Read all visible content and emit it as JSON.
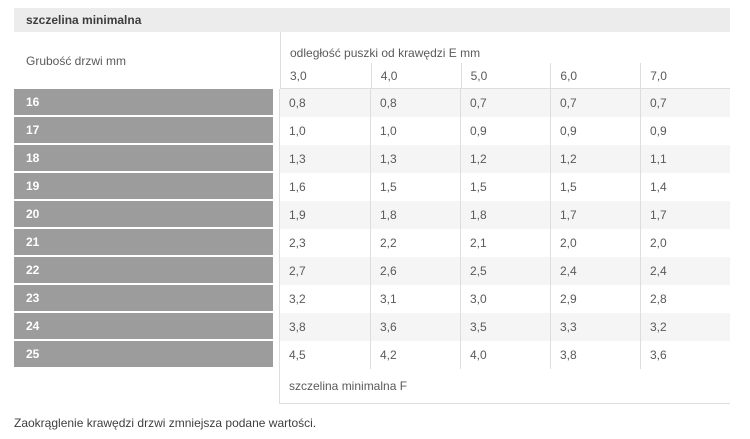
{
  "title_bar": {
    "label": "szczelina minimalna"
  },
  "table": {
    "row_axis_label": "Grubość drzwi mm",
    "col_group_label": "odległość puszki od krawędzi E mm",
    "col_headers": [
      "3,0",
      "4,0",
      "5,0",
      "6,0",
      "7,0"
    ],
    "rows": [
      {
        "label": "16",
        "values": [
          "0,8",
          "0,8",
          "0,7",
          "0,7",
          "0,7"
        ]
      },
      {
        "label": "17",
        "values": [
          "1,0",
          "1,0",
          "0,9",
          "0,9",
          "0,9"
        ]
      },
      {
        "label": "18",
        "values": [
          "1,3",
          "1,3",
          "1,2",
          "1,2",
          "1,1"
        ]
      },
      {
        "label": "19",
        "values": [
          "1,6",
          "1,5",
          "1,5",
          "1,5",
          "1,4"
        ]
      },
      {
        "label": "20",
        "values": [
          "1,9",
          "1,8",
          "1,8",
          "1,7",
          "1,7"
        ]
      },
      {
        "label": "21",
        "values": [
          "2,3",
          "2,2",
          "2,1",
          "2,0",
          "2,0"
        ]
      },
      {
        "label": "22",
        "values": [
          "2,7",
          "2,6",
          "2,5",
          "2,4",
          "2,4"
        ]
      },
      {
        "label": "23",
        "values": [
          "3,2",
          "3,1",
          "3,0",
          "2,9",
          "2,8"
        ]
      },
      {
        "label": "24",
        "values": [
          "3,8",
          "3,6",
          "3,5",
          "3,3",
          "3,2"
        ]
      },
      {
        "label": "25",
        "values": [
          "4,5",
          "4,2",
          "4,0",
          "3,8",
          "3,6"
        ]
      }
    ],
    "footer_label": "szczelina minimalna F"
  },
  "caption": "Zaokrąglenie krawędzi drzwi zmniejsza podane wartości.",
  "colors": {
    "title_bar_bg": "#ececec",
    "row_header_bg": "#9c9c9c",
    "stripe_bg": "#f5f5f5",
    "border": "#dddddd",
    "text": "#5a5a5a",
    "row_header_text": "#ffffff",
    "caption_text": "#3f3f3f"
  },
  "chart_data": {
    "type": "table",
    "title": "szczelina minimalna",
    "row_axis_label": "Grubość drzwi mm",
    "column_group_label": "odległość puszki od krawędzi E mm",
    "columns": [
      "3,0",
      "4,0",
      "5,0",
      "6,0",
      "7,0"
    ],
    "row_categories": [
      16,
      17,
      18,
      19,
      20,
      21,
      22,
      23,
      24,
      25
    ],
    "series": [
      {
        "name": "3,0",
        "values": [
          0.8,
          1.0,
          1.3,
          1.6,
          1.9,
          2.3,
          2.7,
          3.2,
          3.8,
          4.5
        ]
      },
      {
        "name": "4,0",
        "values": [
          0.8,
          1.0,
          1.3,
          1.5,
          1.8,
          2.2,
          2.6,
          3.1,
          3.6,
          4.2
        ]
      },
      {
        "name": "5,0",
        "values": [
          0.7,
          0.9,
          1.2,
          1.5,
          1.8,
          2.1,
          2.5,
          3.0,
          3.5,
          4.0
        ]
      },
      {
        "name": "6,0",
        "values": [
          0.7,
          0.9,
          1.2,
          1.5,
          1.7,
          2.0,
          2.4,
          2.9,
          3.3,
          3.8
        ]
      },
      {
        "name": "7,0",
        "values": [
          0.7,
          0.9,
          1.1,
          1.4,
          1.7,
          2.0,
          2.4,
          2.8,
          3.2,
          3.6
        ]
      }
    ],
    "footer": "szczelina minimalna F",
    "note": "Zaokrąglenie krawędzi drzwi zmniejsza podane wartości."
  }
}
